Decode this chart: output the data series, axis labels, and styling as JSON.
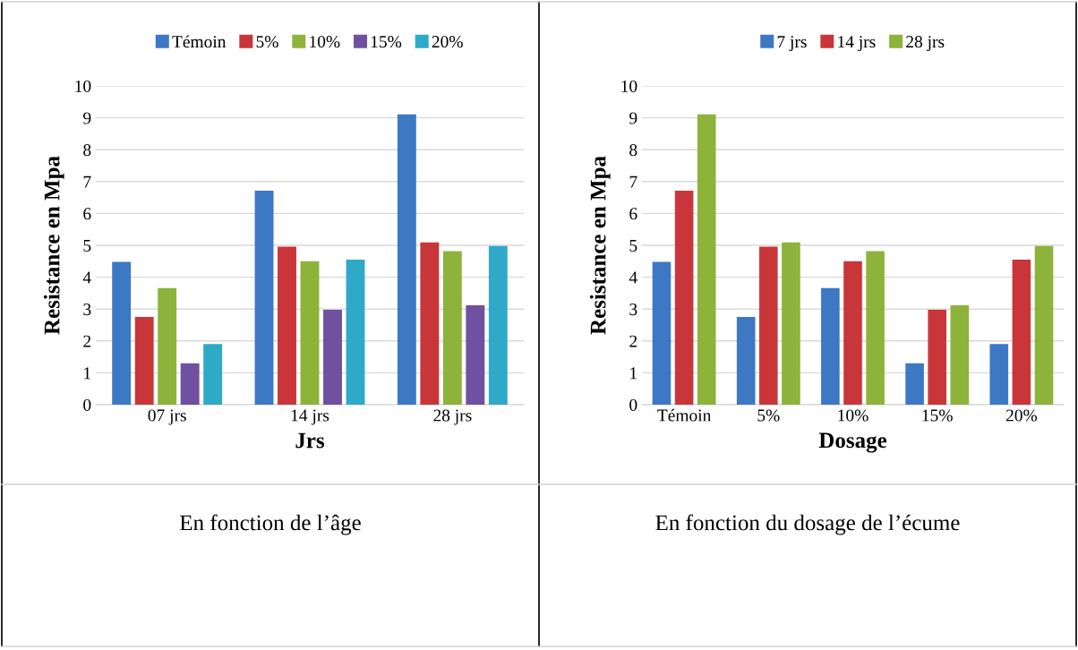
{
  "chart_data": [
    {
      "type": "bar",
      "xlabel": "Jrs",
      "ylabel": "Resistance en Mpa",
      "categories": [
        "07 jrs",
        "14 jrs",
        "28 jrs"
      ],
      "series": [
        {
          "name": "Témoin",
          "color": "#3d78c4",
          "values": [
            4.48,
            6.71,
            9.11
          ]
        },
        {
          "name": "5%",
          "color": "#c9363a",
          "values": [
            2.75,
            4.96,
            5.09
          ]
        },
        {
          "name": "10%",
          "color": "#8db33a",
          "values": [
            3.66,
            4.5,
            4.82
          ]
        },
        {
          "name": "15%",
          "color": "#7050a0",
          "values": [
            1.3,
            2.98,
            3.12
          ]
        },
        {
          "name": "20%",
          "color": "#2eaac8",
          "values": [
            1.9,
            4.55,
            4.98
          ]
        }
      ],
      "ylim": [
        0,
        10
      ],
      "yticks": [
        0,
        1,
        2,
        3,
        4,
        5,
        6,
        7,
        8,
        9,
        10
      ],
      "grid": "y",
      "legend": "top",
      "annotations": [
        "En fonction de l’âge"
      ]
    },
    {
      "type": "bar",
      "xlabel": "Dosage",
      "ylabel": "Resistance en Mpa",
      "categories": [
        "Témoin",
        "5%",
        "10%",
        "15%",
        "20%"
      ],
      "series": [
        {
          "name": "7 jrs",
          "color": "#3d78c4",
          "values": [
            4.48,
            2.75,
            3.66,
            1.3,
            1.9
          ]
        },
        {
          "name": "14 jrs",
          "color": "#c9363a",
          "values": [
            6.71,
            4.96,
            4.5,
            2.98,
            4.55
          ]
        },
        {
          "name": "28 jrs",
          "color": "#8db33a",
          "values": [
            9.11,
            5.09,
            4.82,
            3.12,
            4.98
          ]
        }
      ],
      "ylim": [
        0,
        10
      ],
      "yticks": [
        0,
        1,
        2,
        3,
        4,
        5,
        6,
        7,
        8,
        9,
        10
      ],
      "grid": "y",
      "legend": "top",
      "annotations": [
        "En fonction du dosage de l’écume"
      ]
    }
  ]
}
